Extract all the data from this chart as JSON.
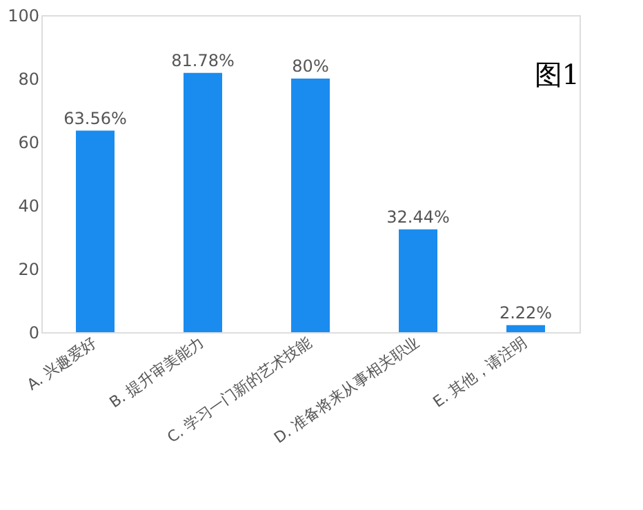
{
  "chart_data": {
    "type": "bar",
    "title": "图1",
    "categories": [
      "A. 兴趣爱好",
      "B. 提升审美能力",
      "C. 学习一门新的艺术技能",
      "D. 准备将来从事相关职业",
      "E. 其他，请注明"
    ],
    "values": [
      63.56,
      81.78,
      80,
      32.44,
      2.22
    ],
    "value_labels": [
      "63.56%",
      "81.78%",
      "80%",
      "32.44%",
      "2.22%"
    ],
    "color": "#1a8cf0",
    "ylim": [
      0,
      100
    ],
    "yticks": [
      0,
      20,
      40,
      60,
      80,
      100
    ],
    "grid": false
  }
}
